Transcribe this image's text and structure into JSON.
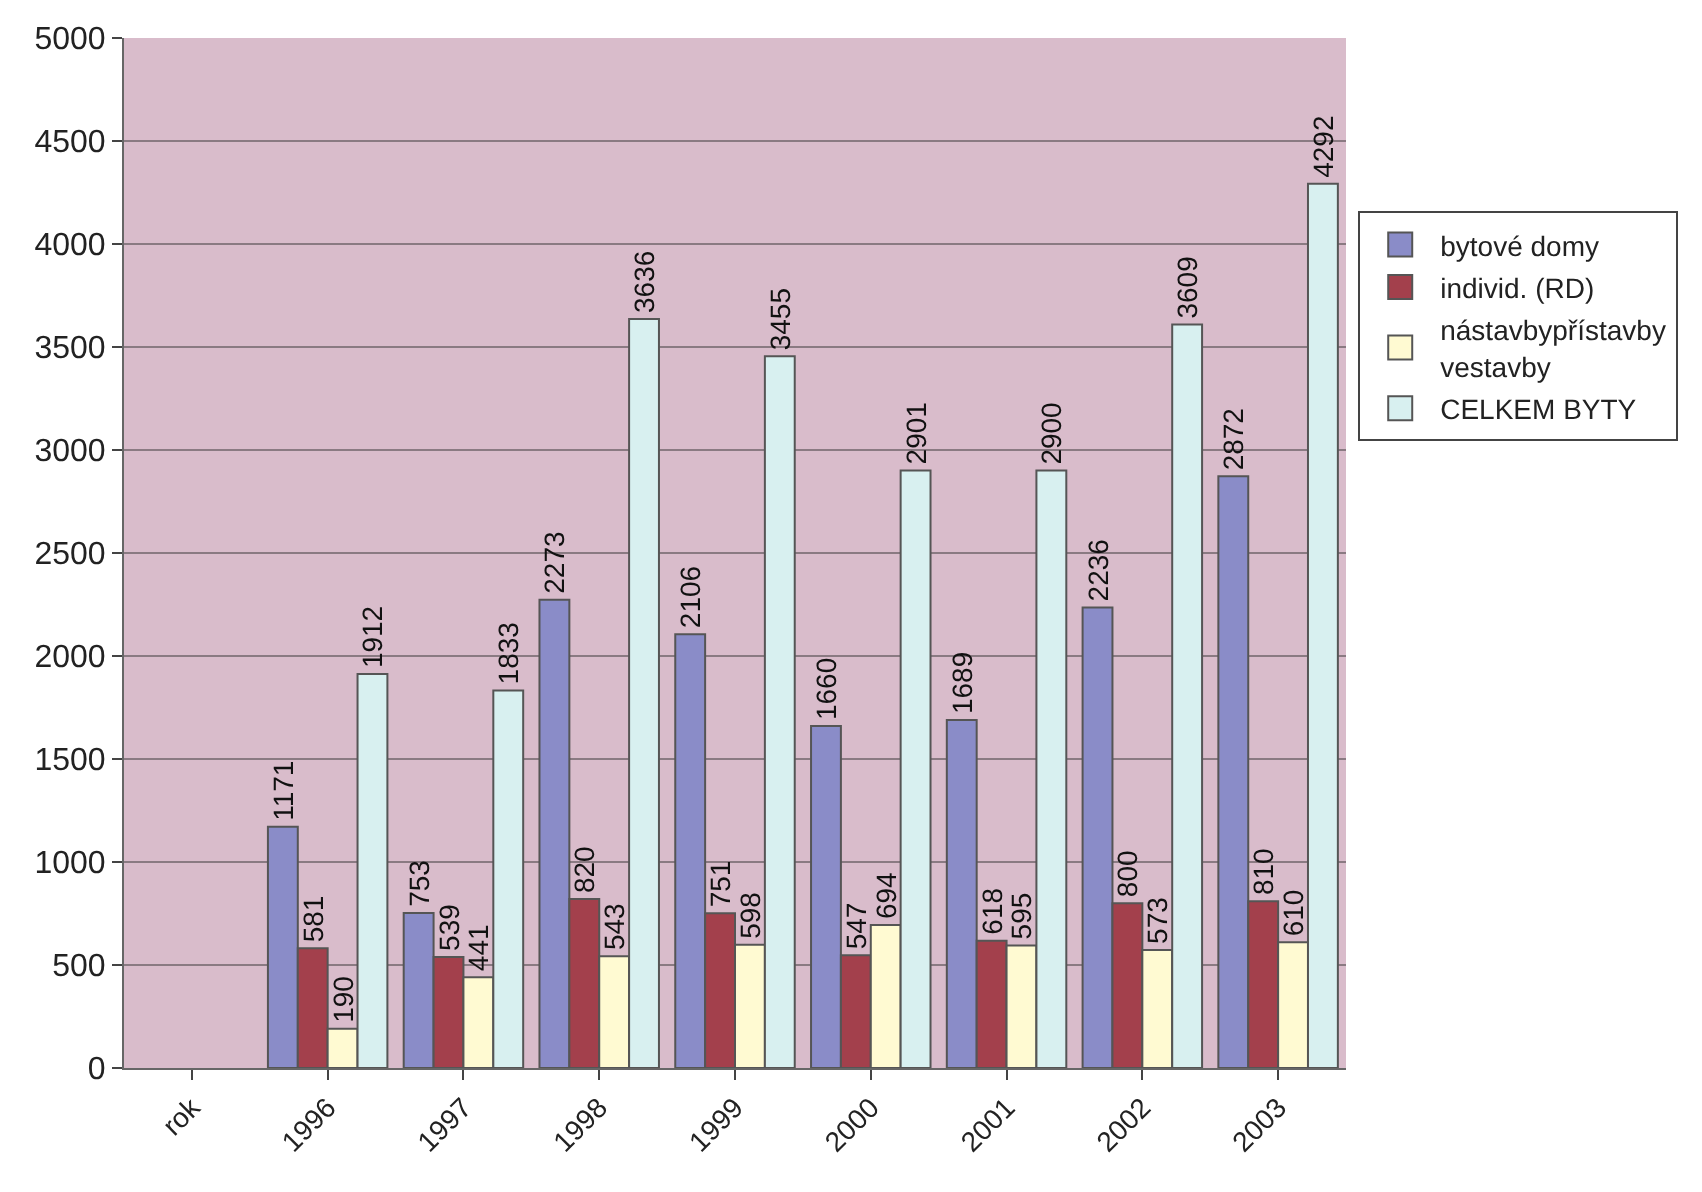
{
  "chart_data": {
    "type": "bar",
    "categories": [
      "rok",
      "1996",
      "1997",
      "1998",
      "1999",
      "2000",
      "2001",
      "2002",
      "2003"
    ],
    "series": [
      {
        "name": "bytové domy",
        "color": "#8a8cc8",
        "values": [
          null,
          1171,
          753,
          2273,
          2106,
          1660,
          1689,
          2236,
          2872
        ]
      },
      {
        "name": "individ. (RD)",
        "color": "#a3404c",
        "values": [
          null,
          581,
          539,
          820,
          751,
          547,
          618,
          800,
          810
        ]
      },
      {
        "name": "nástavbypřístavby vestavby",
        "color": "#fffad2",
        "values": [
          null,
          190,
          441,
          543,
          598,
          694,
          595,
          573,
          610
        ]
      },
      {
        "name": "CELKEM BYTY",
        "color": "#d8f0f0",
        "values": [
          null,
          1912,
          1833,
          3636,
          3455,
          2901,
          2900,
          3609,
          4292
        ]
      }
    ],
    "ylim": [
      0,
      5000
    ],
    "yticks": [
      0,
      500,
      1000,
      1500,
      2000,
      2500,
      3000,
      3500,
      4000,
      4500,
      5000
    ],
    "grid": "y",
    "legend": "right",
    "data_labels": true
  }
}
